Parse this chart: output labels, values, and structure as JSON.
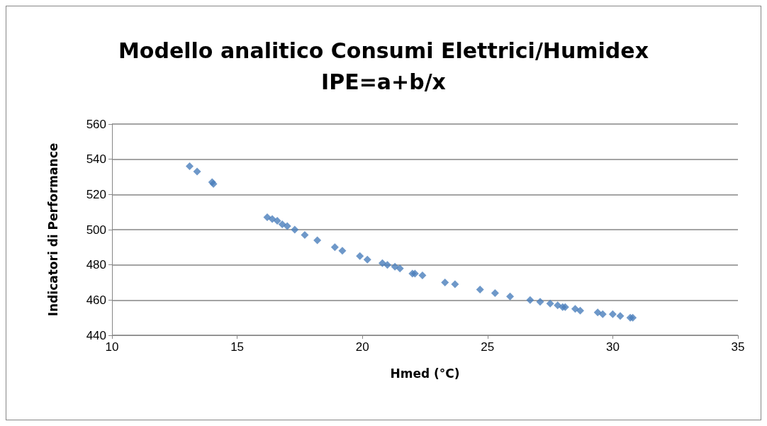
{
  "chart_data": {
    "type": "scatter",
    "title": "Modello analitico Consumi Elettrici/Humidex\nIPE=a+b/x",
    "xlabel": "Hmed (°C)",
    "ylabel": "Indicatori di Performance",
    "x": [
      13.1,
      13.4,
      14.0,
      14.05,
      16.2,
      16.4,
      16.6,
      16.8,
      17.0,
      17.3,
      17.7,
      18.2,
      18.9,
      19.2,
      19.9,
      20.2,
      20.8,
      21.0,
      21.3,
      21.5,
      22.0,
      22.1,
      22.4,
      23.3,
      23.7,
      24.7,
      25.3,
      25.9,
      26.7,
      27.1,
      27.5,
      27.8,
      28.0,
      28.1,
      28.5,
      28.7,
      29.4,
      29.6,
      30.0,
      30.3,
      30.7,
      30.8
    ],
    "values": [
      536,
      533,
      527,
      526,
      507,
      506,
      505,
      503,
      502,
      500,
      497,
      494,
      490,
      488,
      485,
      483,
      481,
      480,
      479,
      478,
      475,
      475,
      474,
      470,
      469,
      466,
      464,
      462,
      460,
      459,
      458,
      457,
      456,
      456,
      455,
      454,
      453,
      452,
      452,
      451,
      450,
      450
    ],
    "color": "#4a7ebb",
    "marker": "diamond",
    "xlim": [
      10,
      35
    ],
    "xticks": [
      10,
      15,
      20,
      25,
      30,
      35
    ],
    "ylim": [
      440,
      560
    ],
    "yticks": [
      440,
      460,
      480,
      500,
      520,
      540,
      560
    ],
    "grid": "y"
  }
}
